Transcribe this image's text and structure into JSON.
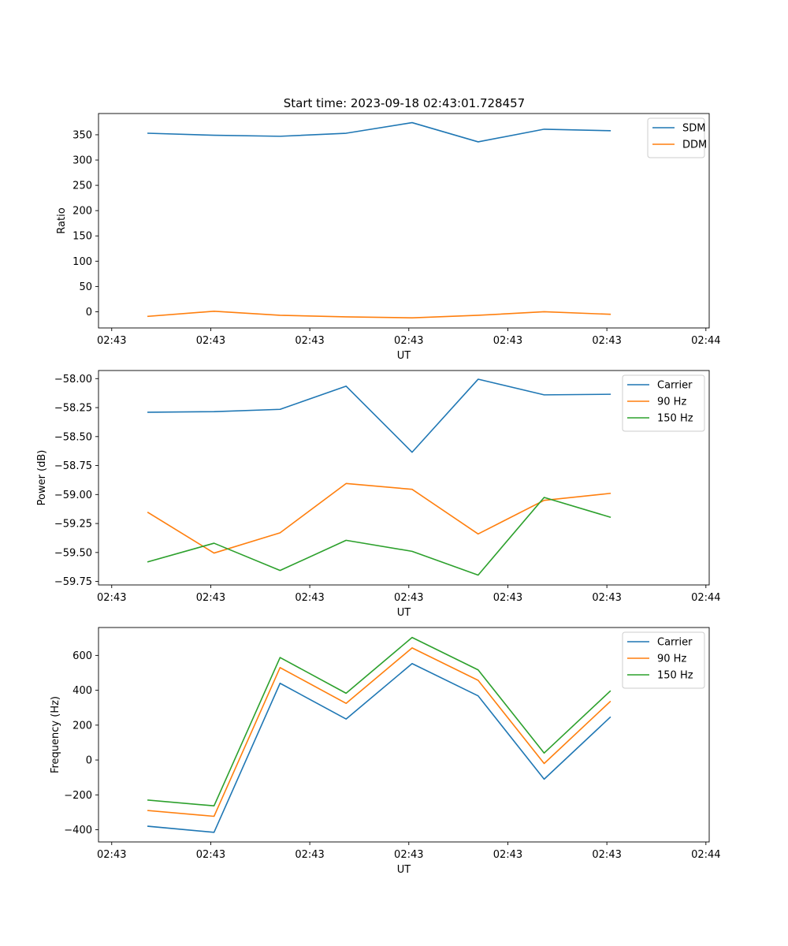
{
  "figure_title": "Start time: 2023-09-18 02:43:01.728457",
  "chart_data": [
    {
      "type": "line",
      "id": "ratio",
      "title": "Start time: 2023-09-18 02:43:01.728457",
      "xlabel": "UT",
      "ylabel": "Ratio",
      "x": [
        1,
        2,
        3,
        4,
        5,
        6,
        7,
        8
      ],
      "xlim": [
        0.25,
        9.5
      ],
      "xticks": [
        0.45,
        1.95,
        3.45,
        4.95,
        6.45,
        7.95,
        9.45
      ],
      "xtick_labels": [
        "02:43",
        "02:43",
        "02:43",
        "02:43",
        "02:43",
        "02:43",
        "02:44"
      ],
      "ylim": [
        -32,
        392
      ],
      "yticks": [
        0,
        50,
        100,
        150,
        200,
        250,
        300,
        350
      ],
      "ytick_labels": [
        "0",
        "50",
        "100",
        "150",
        "200",
        "250",
        "300",
        "350"
      ],
      "legend_position": "top-right",
      "series": [
        {
          "name": "SDM",
          "color": "#1f77b4",
          "values": [
            353,
            349,
            347,
            353,
            374,
            336,
            361,
            358
          ]
        },
        {
          "name": "DDM",
          "color": "#ff7f0e",
          "values": [
            -9,
            1,
            -7,
            -10,
            -12,
            -7,
            0,
            -5
          ]
        }
      ]
    },
    {
      "type": "line",
      "id": "power",
      "title": "",
      "xlabel": "UT",
      "ylabel": "Power (dB)",
      "x": [
        1,
        2,
        3,
        4,
        5,
        6,
        7,
        8
      ],
      "xlim": [
        0.25,
        9.5
      ],
      "xticks": [
        0.45,
        1.95,
        3.45,
        4.95,
        6.45,
        7.95,
        9.45
      ],
      "xtick_labels": [
        "02:43",
        "02:43",
        "02:43",
        "02:43",
        "02:43",
        "02:43",
        "02:44"
      ],
      "ylim": [
        -59.78,
        -57.93
      ],
      "yticks": [
        -59.75,
        -59.5,
        -59.25,
        -59.0,
        -58.75,
        -58.5,
        -58.25,
        -58.0
      ],
      "ytick_labels": [
        "−59.75",
        "−59.50",
        "−59.25",
        "−59.00",
        "−58.75",
        "−58.50",
        "−58.25",
        "−58.00"
      ],
      "legend_position": "top-right",
      "series": [
        {
          "name": "Carrier",
          "color": "#1f77b4",
          "values": [
            -58.29,
            -58.285,
            -58.265,
            -58.065,
            -58.635,
            -58.005,
            -58.14,
            -58.135
          ]
        },
        {
          "name": "90 Hz",
          "color": "#ff7f0e",
          "values": [
            -59.155,
            -59.505,
            -59.33,
            -58.905,
            -58.955,
            -59.34,
            -59.05,
            -58.99
          ]
        },
        {
          "name": "150 Hz",
          "color": "#2ca02c",
          "values": [
            -59.58,
            -59.42,
            -59.655,
            -59.395,
            -59.49,
            -59.695,
            -59.025,
            -59.195
          ]
        }
      ]
    },
    {
      "type": "line",
      "id": "frequency",
      "title": "",
      "xlabel": "UT",
      "ylabel": "Frequency (Hz)",
      "x": [
        1,
        2,
        3,
        4,
        5,
        6,
        7,
        8
      ],
      "xlim": [
        0.25,
        9.5
      ],
      "xticks": [
        0.45,
        1.95,
        3.45,
        4.95,
        6.45,
        7.95,
        9.45
      ],
      "xtick_labels": [
        "02:43",
        "02:43",
        "02:43",
        "02:43",
        "02:43",
        "02:43",
        "02:44"
      ],
      "ylim": [
        -470,
        760
      ],
      "yticks": [
        -400,
        -200,
        0,
        200,
        400,
        600
      ],
      "ytick_labels": [
        "−400",
        "−200",
        "0",
        "200",
        "400",
        "600"
      ],
      "legend_position": "top-right",
      "series": [
        {
          "name": "Carrier",
          "color": "#1f77b4",
          "values": [
            -380,
            -415,
            440,
            235,
            553,
            368,
            -110,
            245
          ]
        },
        {
          "name": "90 Hz",
          "color": "#ff7f0e",
          "values": [
            -290,
            -323,
            530,
            325,
            643,
            457,
            -20,
            335
          ]
        },
        {
          "name": "150 Hz",
          "color": "#2ca02c",
          "values": [
            -230,
            -263,
            588,
            383,
            703,
            517,
            40,
            395
          ]
        }
      ]
    }
  ]
}
